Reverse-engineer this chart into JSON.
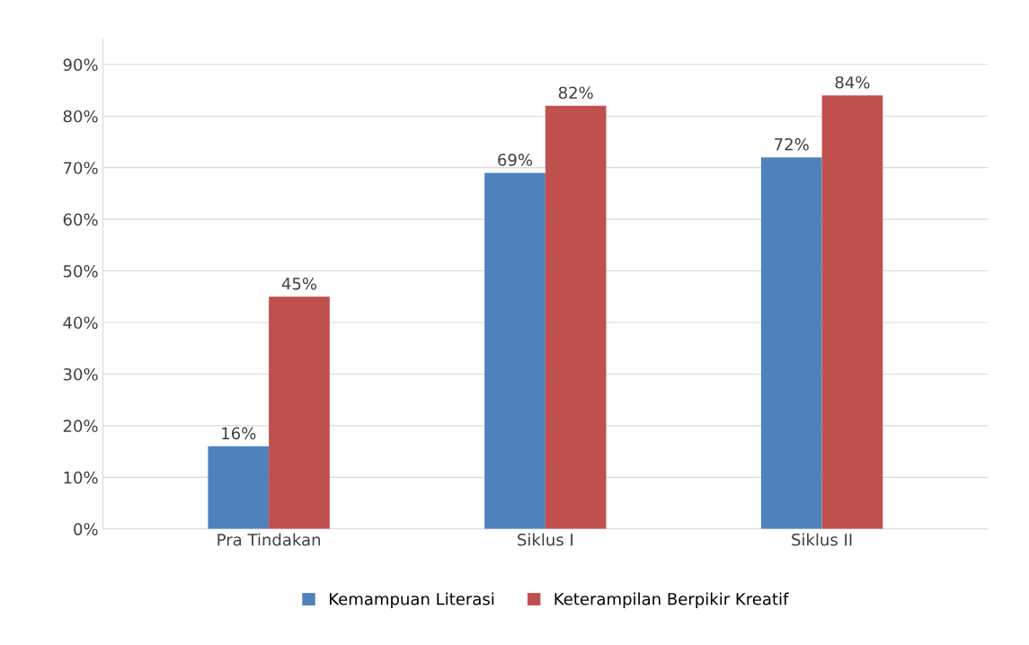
{
  "chart_data": {
    "type": "bar",
    "categories": [
      "Pra Tindakan",
      "Siklus I",
      "Siklus II"
    ],
    "series": [
      {
        "name": "Kemampuan Literasi",
        "color": "#4f81bd",
        "values": [
          16,
          69,
          72
        ],
        "value_labels": [
          "16%",
          "69%",
          "72%"
        ]
      },
      {
        "name": "Keterampilan Berpikir Kreatif",
        "color": "#c0504d",
        "values": [
          45,
          82,
          84
        ],
        "value_labels": [
          "45%",
          "82%",
          "84%"
        ]
      }
    ],
    "ylim": [
      0,
      95
    ],
    "yticks": [
      {
        "value": 0,
        "label": "0%"
      },
      {
        "value": 10,
        "label": "10%"
      },
      {
        "value": 20,
        "label": "20%"
      },
      {
        "value": 30,
        "label": "30%"
      },
      {
        "value": 40,
        "label": "40%"
      },
      {
        "value": 50,
        "label": "50%"
      },
      {
        "value": 60,
        "label": "60%"
      },
      {
        "value": 70,
        "label": "70%"
      },
      {
        "value": 80,
        "label": "80%"
      },
      {
        "value": 90,
        "label": "90%"
      }
    ],
    "grid": "y",
    "legend": "bottom"
  }
}
